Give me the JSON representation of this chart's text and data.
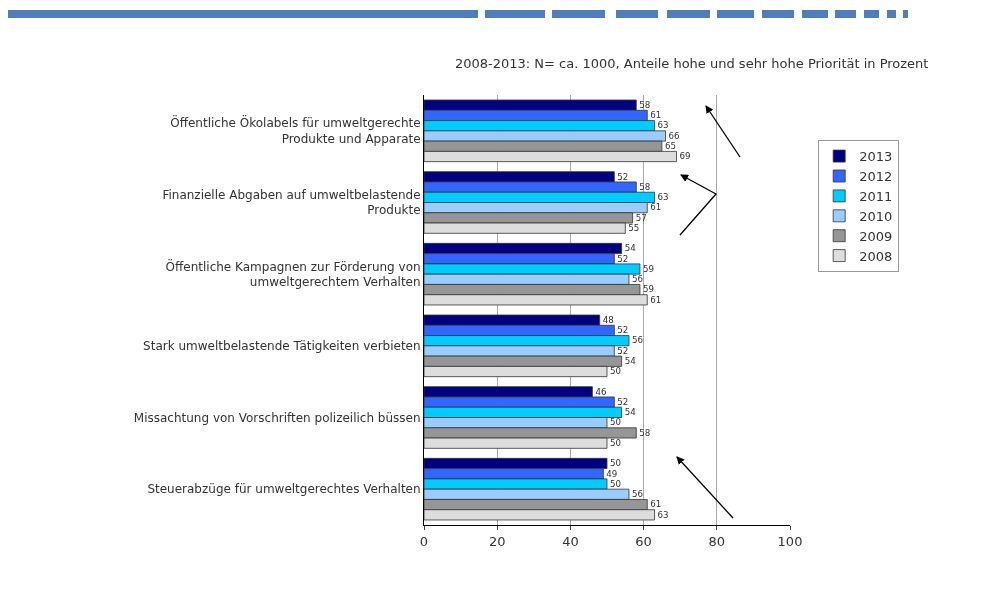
{
  "chart_data": {
    "type": "bar",
    "orientation": "horizontal",
    "subtitle": "2008-2013: N= ca. 1000, Anteile hohe und sehr hohe Priorität in Prozent",
    "categories": [
      "Öffentliche Ökolabels für umweltgerechte Produkte und Apparate",
      "Finanzielle Abgaben auf umweltbelastende Produkte",
      "Öffentliche Kampagnen zur Förderung von umweltgerechtem Verhalten",
      "Stark umweltbelastende Tätigkeiten verbieten",
      "Missachtung von Vorschriften polizeilich büssen",
      "Steuerabzüge für umweltgerechtes Verhalten"
    ],
    "series": [
      {
        "name": "2013",
        "color": "#000080",
        "values": [
          58,
          52,
          54,
          48,
          46,
          50
        ]
      },
      {
        "name": "2012",
        "color": "#3366ff",
        "values": [
          61,
          58,
          52,
          52,
          52,
          49
        ]
      },
      {
        "name": "2011",
        "color": "#00ccff",
        "values": [
          63,
          63,
          59,
          56,
          54,
          50
        ]
      },
      {
        "name": "2010",
        "color": "#99ccff",
        "values": [
          66,
          61,
          56,
          52,
          50,
          56
        ]
      },
      {
        "name": "2009",
        "color": "#969696",
        "values": [
          65,
          57,
          59,
          54,
          58,
          61
        ]
      },
      {
        "name": "2008",
        "color": "#dddddd",
        "values": [
          69,
          55,
          61,
          50,
          50,
          63
        ]
      }
    ],
    "xlim": [
      0,
      100
    ],
    "xticks": [
      0,
      20,
      40,
      60,
      80,
      100
    ],
    "grid": "x",
    "legend": "right",
    "data_labels": true
  }
}
